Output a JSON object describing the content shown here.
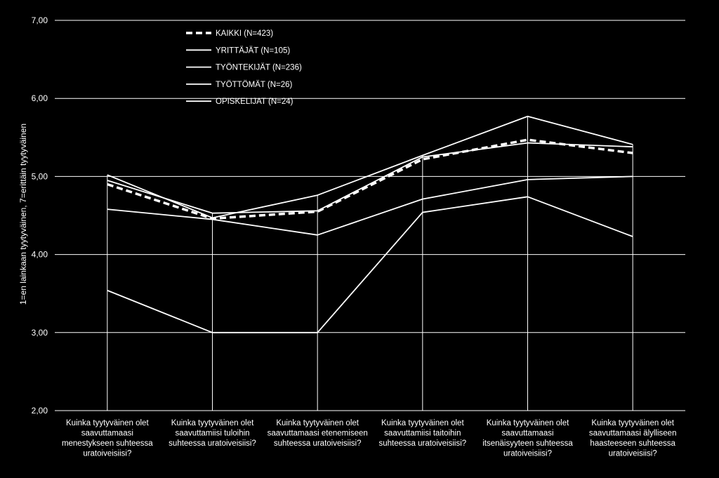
{
  "chart_data": {
    "type": "line",
    "ylabel": "1=en lainkaan tyytyväinen, 7=erittäin tyytyväinen",
    "ylim": [
      2,
      7
    ],
    "yticks": [
      "2,00",
      "3,00",
      "4,00",
      "5,00",
      "6,00",
      "7,00"
    ],
    "grid": true,
    "legend_position": "top-left",
    "categories": [
      [
        "Kuinka tyytyväinen olet",
        "saavuttamaasi",
        "menestykseen suhteessa",
        "uratoiveisiisi?"
      ],
      [
        "Kuinka tyytyväinen olet",
        "saavuttamiisi tuloihin",
        "suhteessa uratoiveisiisi?"
      ],
      [
        "Kuinka tyytyväinen olet",
        "saavuttamaasi etenemiseen",
        "suhteessa uratoiveisiisi?"
      ],
      [
        "Kuinka tyytyväinen olet",
        "saavuttamiisi taitoihin",
        "suhteessa uratoiveisiisi?"
      ],
      [
        "Kuinka tyytyväinen olet",
        "saavuttamaasi",
        "itsenäisyyteen suhteessa",
        "uratoiveisiisi?"
      ],
      [
        "Kuinka tyytyväinen olet",
        "saavuttamaasi älylliseen",
        "haasteeseen suhteessa",
        "uratoiveisiisi?"
      ]
    ],
    "series": [
      {
        "name": "KAIKKI (N=423)",
        "dashed": true,
        "values": [
          4.9,
          4.46,
          4.55,
          5.22,
          5.47,
          5.3
        ]
      },
      {
        "name": "YRITTÄJÄT (N=105)",
        "dashed": false,
        "values": [
          5.02,
          4.47,
          4.76,
          5.27,
          5.77,
          5.41
        ]
      },
      {
        "name": "TYÖNTEKIJÄT (N=236)",
        "dashed": false,
        "values": [
          4.95,
          4.53,
          4.56,
          5.25,
          5.43,
          5.38
        ]
      },
      {
        "name": "TYÖTTÖMÄT (N=26)",
        "dashed": false,
        "values": [
          4.58,
          4.45,
          4.25,
          4.71,
          4.96,
          5.0
        ]
      },
      {
        "name": "OPISKELIJAT (N=24)",
        "dashed": false,
        "values": [
          3.54,
          3.0,
          3.0,
          4.54,
          4.74,
          4.23
        ]
      }
    ],
    "colors": {
      "background": "#000000",
      "line": "#ffffff",
      "grid": "#ffffff"
    }
  }
}
